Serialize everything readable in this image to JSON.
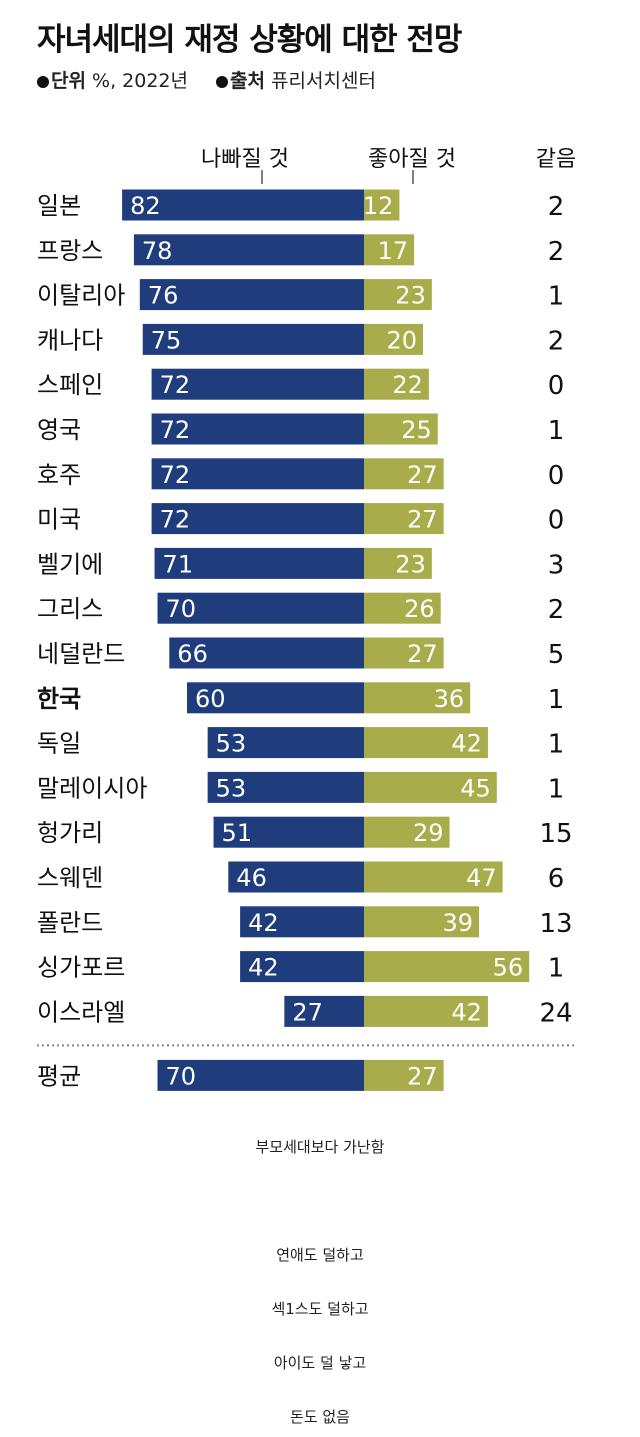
{
  "title": "자녀세대의 재정 상황에 대한 전망",
  "meta": {
    "unit_label": "단위",
    "unit_value": "%, 2022년",
    "source_label": "출처",
    "source_value": "퓨리서치센터"
  },
  "colors": {
    "worse": "#1f3c7d",
    "better": "#a9ac4a",
    "text": "#111111",
    "bar_text": "#ffffff"
  },
  "chart_data": {
    "type": "bar",
    "orientation": "horizontal",
    "layout": "diverging",
    "categories": [
      "일본",
      "프랑스",
      "이탈리아",
      "캐나다",
      "스페인",
      "영국",
      "호주",
      "미국",
      "벨기에",
      "그리스",
      "네덜란드",
      "한국",
      "독일",
      "말레이시아",
      "헝가리",
      "스웨덴",
      "폴란드",
      "싱가포르",
      "이스라엘"
    ],
    "highlight": "한국",
    "series": [
      {
        "name": "나빠질 것",
        "values": [
          82,
          78,
          76,
          75,
          72,
          72,
          72,
          72,
          71,
          70,
          66,
          60,
          53,
          53,
          51,
          46,
          42,
          42,
          27
        ]
      },
      {
        "name": "좋아질 것",
        "values": [
          12,
          17,
          23,
          20,
          22,
          25,
          27,
          27,
          23,
          26,
          27,
          36,
          42,
          45,
          29,
          47,
          39,
          56,
          42
        ]
      },
      {
        "name": "같음",
        "values": [
          2,
          2,
          1,
          2,
          0,
          1,
          0,
          0,
          3,
          2,
          5,
          1,
          1,
          1,
          15,
          6,
          13,
          1,
          24
        ]
      }
    ],
    "average": {
      "label": "평균",
      "worse": 70,
      "better": 27
    }
  },
  "footer": {
    "lines": [
      "부모세대보다 가난함",
      "연애도 덜하고",
      "섹1스도 덜하고",
      "아이도 덜 낳고",
      "돈도 없음"
    ]
  }
}
